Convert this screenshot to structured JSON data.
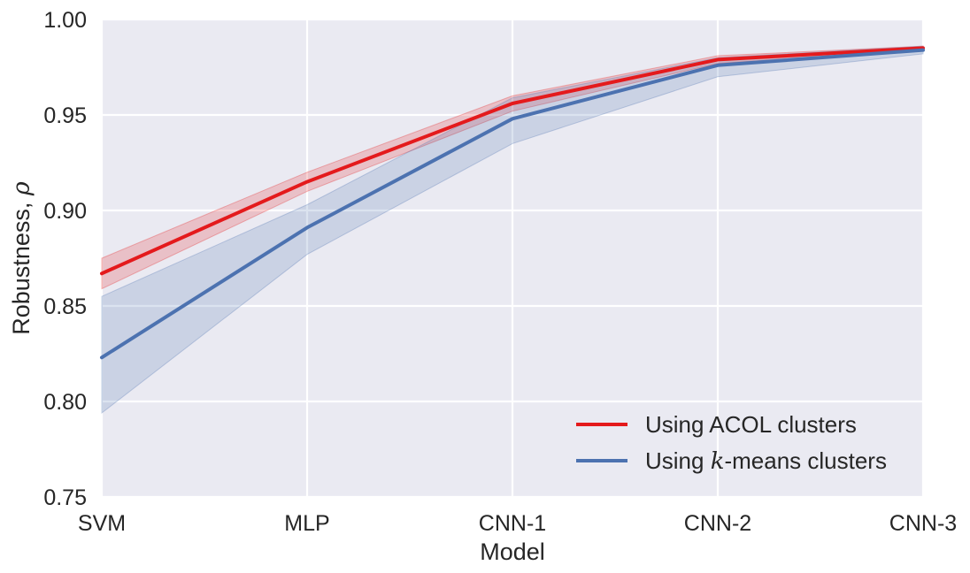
{
  "chart_data": {
    "type": "line",
    "categories": [
      "SVM",
      "MLP",
      "CNN-1",
      "CNN-2",
      "CNN-3"
    ],
    "ylim": [
      0.75,
      1.0
    ],
    "yticks": [
      "0.75",
      "0.80",
      "0.85",
      "0.90",
      "0.95",
      "1.00"
    ],
    "yticks_values": [
      0.75,
      0.8,
      0.85,
      0.9,
      0.95,
      1.0
    ],
    "xlabel": "Model",
    "ylabel_text": "Robustness, ",
    "ylabel_symbol": "ρ",
    "grid": true,
    "legend_placement": "bottom-right",
    "series": [
      {
        "name_parts": [
          "Using ACOL clusters"
        ],
        "color": "#e41a1c",
        "values": [
          0.867,
          0.915,
          0.956,
          0.979,
          0.985
        ],
        "lower": [
          0.859,
          0.91,
          0.952,
          0.977,
          0.984
        ],
        "upper": [
          0.875,
          0.92,
          0.96,
          0.981,
          0.986
        ]
      },
      {
        "name_parts": [
          "Using ",
          "k",
          "-means clusters"
        ],
        "color": "#4c72b0",
        "values": [
          0.823,
          0.891,
          0.948,
          0.976,
          0.984
        ],
        "lower": [
          0.794,
          0.877,
          0.935,
          0.97,
          0.982
        ],
        "upper": [
          0.855,
          0.903,
          0.959,
          0.98,
          0.986
        ]
      }
    ]
  },
  "colors": {
    "plot_background": "#eaeaf2",
    "grid": "#ffffff",
    "text": "#262626"
  }
}
